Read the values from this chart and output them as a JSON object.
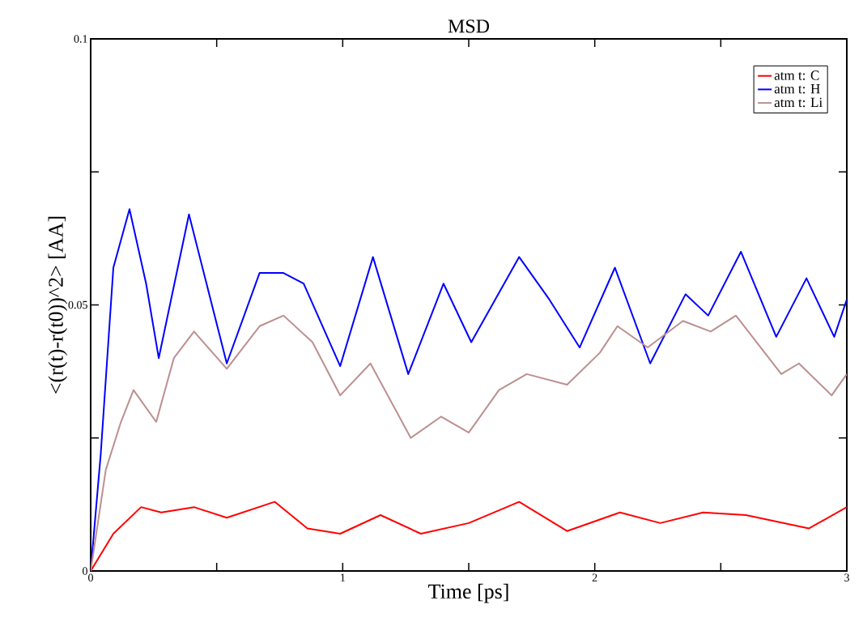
{
  "chart_data": {
    "type": "line",
    "title": "MSD",
    "xlabel": "Time [ps]",
    "ylabel": "<(r(t)-r(t0))^2> [AA]",
    "xlim": [
      0,
      3
    ],
    "ylim": [
      0,
      0.1
    ],
    "xticks": [
      0,
      {
        "value": 0.5,
        "label": null
      },
      1,
      {
        "value": 1.5,
        "label": null
      },
      2,
      {
        "value": 2.5,
        "label": null
      },
      3
    ],
    "yticks": [
      0,
      {
        "value": 0.025,
        "label": null
      },
      0.05,
      {
        "value": 0.075,
        "label": null
      },
      0.1
    ],
    "grid": false,
    "legend": "top right",
    "marker": "none",
    "line_style": "solid",
    "series": [
      {
        "name": "atm t: C",
        "color": "#ff0000",
        "x": [
          0,
          0.09,
          0.2,
          0.28,
          0.41,
          0.54,
          0.73,
          0.86,
          0.99,
          1.15,
          1.31,
          1.5,
          1.7,
          1.89,
          2.1,
          2.26,
          2.43,
          2.6,
          2.85,
          3.0
        ],
        "values": [
          0,
          0.007,
          0.012,
          0.011,
          0.012,
          0.01,
          0.013,
          0.008,
          0.007,
          0.0105,
          0.007,
          0.009,
          0.013,
          0.0075,
          0.011,
          0.009,
          0.011,
          0.0105,
          0.008,
          0.012
        ]
      },
      {
        "name": "atm t: H",
        "color": "#0000ff",
        "x": [
          0,
          0.04,
          0.09,
          0.154,
          0.22,
          0.27,
          0.39,
          0.54,
          0.67,
          0.765,
          0.845,
          0.99,
          1.12,
          1.26,
          1.4,
          1.51,
          1.7,
          1.82,
          1.94,
          2.08,
          2.22,
          2.36,
          2.45,
          2.58,
          2.72,
          2.84,
          2.95,
          3.0
        ],
        "values": [
          0,
          0.022,
          0.057,
          0.068,
          0.054,
          0.04,
          0.067,
          0.039,
          0.056,
          0.056,
          0.054,
          0.0385,
          0.059,
          0.037,
          0.054,
          0.043,
          0.059,
          0.051,
          0.042,
          0.057,
          0.039,
          0.052,
          0.048,
          0.06,
          0.044,
          0.055,
          0.044,
          0.051
        ]
      },
      {
        "name": "atm t: Li",
        "color": "#bc8f8f",
        "x": [
          0,
          0.06,
          0.12,
          0.17,
          0.26,
          0.33,
          0.41,
          0.54,
          0.67,
          0.765,
          0.88,
          0.99,
          1.11,
          1.27,
          1.39,
          1.5,
          1.62,
          1.73,
          1.89,
          2.02,
          2.09,
          2.21,
          2.35,
          2.46,
          2.56,
          2.74,
          2.81,
          2.94,
          3.0
        ],
        "values": [
          0,
          0.019,
          0.028,
          0.034,
          0.028,
          0.04,
          0.045,
          0.038,
          0.046,
          0.048,
          0.043,
          0.033,
          0.039,
          0.025,
          0.029,
          0.026,
          0.034,
          0.037,
          0.035,
          0.041,
          0.046,
          0.042,
          0.047,
          0.045,
          0.048,
          0.037,
          0.039,
          0.033,
          0.037
        ]
      }
    ]
  }
}
